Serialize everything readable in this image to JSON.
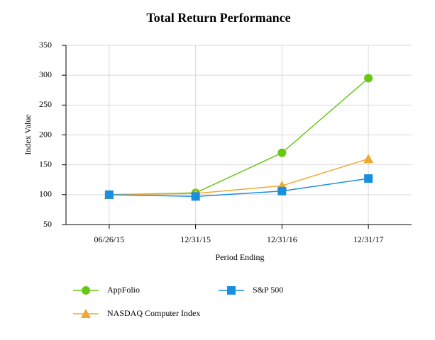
{
  "chart_data": {
    "type": "line",
    "title": "Total Return Performance",
    "x_label": "Period Ending",
    "y_label": "Index Value",
    "categories": [
      "06/26/15",
      "12/31/15",
      "12/31/16",
      "12/31/17"
    ],
    "series": [
      {
        "name": "AppFolio",
        "color": "#66c814",
        "marker": "circle",
        "values": [
          100,
          103,
          170,
          295
        ]
      },
      {
        "name": "S&P 500",
        "color": "#1a8fe0",
        "marker": "square",
        "values": [
          100,
          97,
          106,
          127
        ]
      },
      {
        "name": "NASDAQ Computer Index",
        "color": "#f0a830",
        "marker": "triangle",
        "values": [
          100,
          102,
          115,
          160
        ]
      }
    ],
    "ylim": [
      50,
      350
    ],
    "yticks": [
      50,
      100,
      150,
      200,
      250,
      300,
      350
    ],
    "grid": true
  }
}
